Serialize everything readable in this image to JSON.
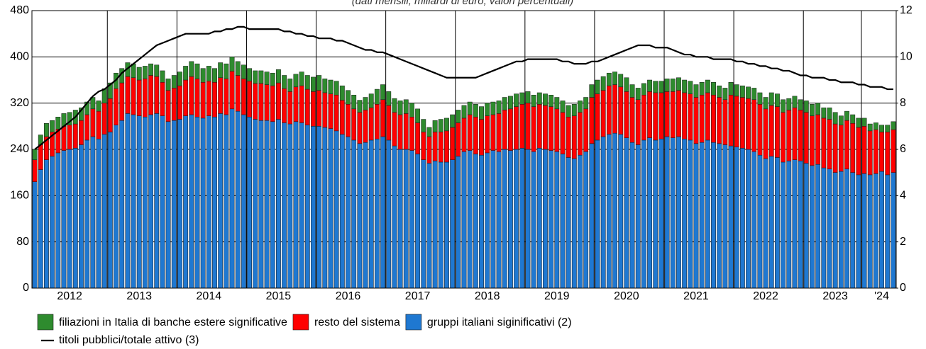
{
  "chart_data": {
    "type": "bar",
    "subtitle": "(dati mensili; miliardi di euro; valori percentuali)",
    "categories": [
      null,
      null,
      null,
      null,
      null,
      null,
      "2012",
      null,
      null,
      null,
      null,
      null,
      null,
      null,
      null,
      null,
      null,
      null,
      "2013",
      null,
      null,
      null,
      null,
      null,
      null,
      null,
      null,
      null,
      null,
      null,
      "2014",
      null,
      null,
      null,
      null,
      null,
      null,
      null,
      null,
      null,
      null,
      null,
      "2015",
      null,
      null,
      null,
      null,
      null,
      null,
      null,
      null,
      null,
      null,
      null,
      "2016",
      null,
      null,
      null,
      null,
      null,
      null,
      null,
      null,
      null,
      null,
      null,
      "2017",
      null,
      null,
      null,
      null,
      null,
      null,
      null,
      null,
      null,
      null,
      null,
      "2018",
      null,
      null,
      null,
      null,
      null,
      null,
      null,
      null,
      null,
      null,
      null,
      "2019",
      null,
      null,
      null,
      null,
      null,
      null,
      null,
      null,
      null,
      null,
      null,
      "2020",
      null,
      null,
      null,
      null,
      null,
      null,
      null,
      null,
      null,
      null,
      null,
      "2021",
      null,
      null,
      null,
      null,
      null,
      null,
      null,
      null,
      null,
      null,
      null,
      "2022",
      null,
      null,
      null,
      null,
      null,
      null,
      null,
      null,
      null,
      null,
      null,
      "2023",
      null,
      null,
      null,
      null,
      null,
      null,
      null,
      "'24",
      null,
      null
    ],
    "series": [
      {
        "name": "gruppi italiani siginificativi (2)",
        "color": "#1f78d1",
        "values": [
          184,
          205,
          222,
          228,
          234,
          238,
          240,
          242,
          248,
          256,
          262,
          258,
          266,
          270,
          282,
          290,
          302,
          300,
          298,
          296,
          300,
          302,
          298,
          288,
          290,
          292,
          298,
          300,
          296,
          294,
          298,
          296,
          302,
          300,
          310,
          306,
          300,
          296,
          292,
          290,
          290,
          288,
          292,
          286,
          284,
          288,
          286,
          282,
          280,
          280,
          278,
          276,
          272,
          266,
          262,
          256,
          250,
          252,
          256,
          258,
          262,
          256,
          246,
          240,
          240,
          238,
          232,
          222,
          216,
          220,
          218,
          218,
          222,
          228,
          236,
          238,
          232,
          230,
          234,
          238,
          236,
          240,
          238,
          240,
          242,
          240,
          236,
          242,
          240,
          238,
          236,
          232,
          226,
          224,
          230,
          236,
          250,
          256,
          262,
          266,
          268,
          266,
          260,
          252,
          248,
          256,
          260,
          256,
          258,
          262,
          260,
          262,
          258,
          256,
          250,
          252,
          256,
          252,
          250,
          248,
          246,
          244,
          242,
          240,
          236,
          230,
          224,
          228,
          226,
          218,
          220,
          222,
          220,
          216,
          212,
          214,
          208,
          206,
          200,
          202,
          206,
          200,
          196,
          198,
          196,
          198,
          202,
          196,
          200
        ]
      },
      {
        "name": "resto del sistema",
        "color": "#ff0000",
        "values": [
          38,
          43,
          40,
          42,
          41,
          42,
          42,
          42,
          42,
          44,
          48,
          48,
          54,
          58,
          63,
          65,
          64,
          64,
          62,
          66,
          68,
          64,
          58,
          54,
          56,
          58,
          62,
          66,
          66,
          62,
          60,
          60,
          62,
          62,
          65,
          62,
          62,
          62,
          62,
          64,
          62,
          62,
          63,
          59,
          56,
          60,
          64,
          62,
          60,
          62,
          60,
          60,
          62,
          59,
          56,
          54,
          54,
          56,
          56,
          60,
          64,
          60,
          58,
          60,
          62,
          58,
          54,
          48,
          46,
          50,
          52,
          54,
          56,
          58,
          58,
          62,
          64,
          62,
          64,
          62,
          66,
          68,
          72,
          74,
          76,
          80,
          78,
          76,
          76,
          76,
          74,
          72,
          70,
          74,
          74,
          74,
          80,
          80,
          80,
          84,
          84,
          82,
          80,
          78,
          78,
          78,
          80,
          82,
          80,
          78,
          80,
          80,
          80,
          80,
          80,
          82,
          82,
          82,
          80,
          78,
          88,
          88,
          88,
          88,
          90,
          88,
          86,
          88,
          88,
          86,
          88,
          90,
          88,
          88,
          86,
          86,
          86,
          86,
          84,
          80,
          84,
          85,
          82,
          82,
          76,
          76,
          68,
          74,
          74
        ]
      },
      {
        "name": "filiazioni in Italia di banche estere significative",
        "color": "#2e8b2e",
        "values": [
          18,
          17,
          23,
          20,
          21,
          22,
          22,
          24,
          22,
          22,
          20,
          18,
          25,
          27,
          27,
          25,
          24,
          24,
          22,
          22,
          20,
          20,
          20,
          20,
          22,
          24,
          24,
          26,
          26,
          24,
          26,
          24,
          26,
          26,
          25,
          24,
          24,
          22,
          22,
          22,
          22,
          22,
          23,
          23,
          22,
          22,
          24,
          24,
          25,
          26,
          24,
          24,
          24,
          25,
          24,
          24,
          21,
          22,
          24,
          26,
          26,
          24,
          24,
          24,
          24,
          24,
          24,
          22,
          16,
          20,
          22,
          22,
          22,
          22,
          22,
          22,
          22,
          22,
          22,
          22,
          22,
          22,
          22,
          22,
          20,
          20,
          20,
          20,
          20,
          20,
          20,
          20,
          20,
          20,
          20,
          20,
          22,
          24,
          24,
          22,
          22,
          22,
          24,
          22,
          20,
          20,
          20,
          20,
          20,
          22,
          22,
          22,
          22,
          22,
          22,
          22,
          22,
          22,
          20,
          20,
          22,
          20,
          20,
          20,
          20,
          20,
          20,
          22,
          22,
          22,
          20,
          20,
          18,
          20,
          20,
          20,
          18,
          20,
          20,
          16,
          16,
          15,
          16,
          14,
          12,
          12,
          12,
          12,
          14
        ]
      },
      {
        "name": "titoli pubblici/totale attivo (3)",
        "type": "line",
        "axis": "y2",
        "color": "#000000",
        "values": [
          6.0,
          6.2,
          6.4,
          6.6,
          6.8,
          7.0,
          7.2,
          7.4,
          7.7,
          8.0,
          8.3,
          8.5,
          8.6,
          8.8,
          9.0,
          9.3,
          9.5,
          9.7,
          9.9,
          10.1,
          10.3,
          10.5,
          10.6,
          10.7,
          10.8,
          10.9,
          11.0,
          11.0,
          11.0,
          11.0,
          11.0,
          11.1,
          11.1,
          11.2,
          11.2,
          11.3,
          11.3,
          11.2,
          11.2,
          11.2,
          11.2,
          11.2,
          11.2,
          11.1,
          11.1,
          11.0,
          11.0,
          10.9,
          10.9,
          10.8,
          10.8,
          10.8,
          10.7,
          10.7,
          10.6,
          10.5,
          10.4,
          10.3,
          10.3,
          10.2,
          10.2,
          10.1,
          10.0,
          9.9,
          9.8,
          9.7,
          9.6,
          9.5,
          9.4,
          9.3,
          9.2,
          9.1,
          9.1,
          9.1,
          9.1,
          9.1,
          9.1,
          9.2,
          9.3,
          9.4,
          9.5,
          9.6,
          9.7,
          9.8,
          9.8,
          9.9,
          9.9,
          9.9,
          9.9,
          9.9,
          9.9,
          9.8,
          9.8,
          9.7,
          9.7,
          9.7,
          9.8,
          9.8,
          9.9,
          10.0,
          10.1,
          10.2,
          10.3,
          10.4,
          10.5,
          10.5,
          10.5,
          10.4,
          10.4,
          10.4,
          10.3,
          10.2,
          10.1,
          10.1,
          10.0,
          10.0,
          10.0,
          9.9,
          9.9,
          9.9,
          9.9,
          9.8,
          9.8,
          9.7,
          9.7,
          9.6,
          9.6,
          9.5,
          9.5,
          9.4,
          9.4,
          9.3,
          9.2,
          9.2,
          9.1,
          9.1,
          9.1,
          9.0,
          9.0,
          8.9,
          8.9,
          8.9,
          8.8,
          8.8,
          8.7,
          8.7,
          8.7,
          8.6,
          8.6
        ]
      }
    ],
    "stacked": true,
    "ylim": [
      0,
      480
    ],
    "yticks": [
      0,
      80,
      160,
      240,
      320,
      400,
      480
    ],
    "y2lim": [
      0,
      12
    ],
    "y2ticks": [
      0,
      2,
      4,
      6,
      8,
      10,
      12
    ],
    "grid": true,
    "legend": "bottom"
  }
}
